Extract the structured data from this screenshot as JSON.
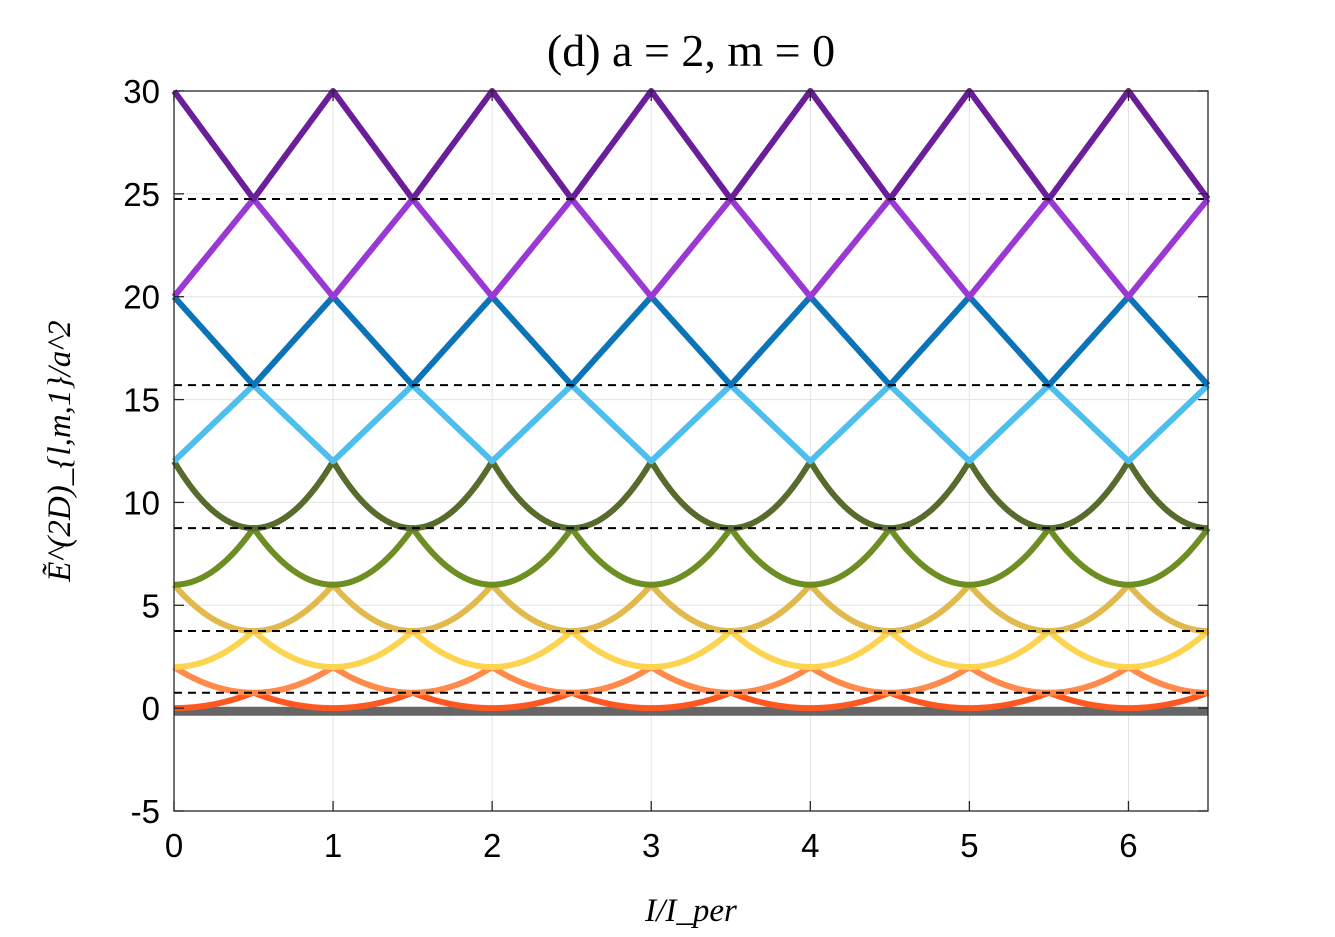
{
  "chart_data": {
    "type": "line",
    "title": "(d) a = 2, m = 0",
    "xlabel": "I/I_per",
    "ylabel": "Ẽ^(2D)_{l,m,1}/a^2",
    "xlim": [
      0,
      6.5
    ],
    "ylim": [
      -5,
      30
    ],
    "x_ticks": [
      "0",
      "1",
      "2",
      "3",
      "4",
      "5",
      "6"
    ],
    "y_ticks": [
      "-5",
      "0",
      "5",
      "10",
      "15",
      "20",
      "25",
      "30"
    ],
    "grid": true,
    "legend": "none",
    "series": [
      {
        "shape": "convex",
        "y_at_integer": -0.15,
        "y_at_half": -0.15,
        "color": "#666666"
      },
      {
        "shape": "convex",
        "y_at_integer": 0,
        "y_at_half": 0.75,
        "color": "#ff5722"
      },
      {
        "shape": "convex",
        "y_at_integer": 2,
        "y_at_half": 0.75,
        "color": "#ff8a4c"
      },
      {
        "shape": "convex",
        "y_at_integer": 2,
        "y_at_half": 3.75,
        "color": "#fcd450"
      },
      {
        "shape": "convex",
        "y_at_integer": 6,
        "y_at_half": 3.75,
        "color": "#e2b94c"
      },
      {
        "shape": "convex",
        "y_at_integer": 6,
        "y_at_half": 8.75,
        "color": "#6d8e23"
      },
      {
        "shape": "convex",
        "y_at_integer": 12,
        "y_at_half": 8.75,
        "color": "#566b2c"
      },
      {
        "shape": "linear",
        "y_at_integer": 12,
        "y_at_half": 15.7,
        "color": "#4dbeee"
      },
      {
        "shape": "linear",
        "y_at_integer": 20,
        "y_at_half": 15.7,
        "color": "#0b74b8"
      },
      {
        "shape": "linear",
        "y_at_integer": 20,
        "y_at_half": 24.75,
        "color": "#9a38d3"
      },
      {
        "shape": "linear",
        "y_at_integer": 30,
        "y_at_half": 24.75,
        "color": "#6a1e9a"
      }
    ],
    "reference_lines": {
      "style": "dashed",
      "color": "#000000",
      "y": [
        0.75,
        3.75,
        8.75,
        15.7,
        24.75
      ]
    }
  }
}
